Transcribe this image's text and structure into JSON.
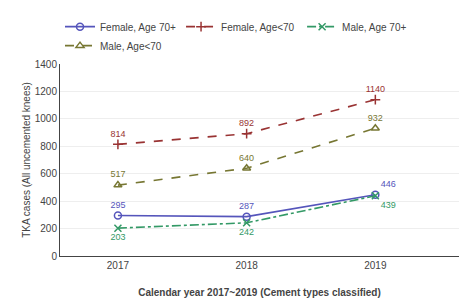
{
  "chart_data": {
    "type": "line",
    "x": [
      2017,
      2018,
      2019
    ],
    "series": [
      {
        "name": "Female, Age 70+",
        "color": "#5555bb",
        "values": [
          295,
          287,
          446
        ],
        "marker": "circle-open",
        "line_style": "solid"
      },
      {
        "name": "Female, Age<70",
        "color": "#993333",
        "values": [
          814,
          892,
          1140
        ],
        "marker": "cross",
        "line_style": "dash"
      },
      {
        "name": "Male, Age 70+",
        "color": "#339966",
        "values": [
          203,
          242,
          439
        ],
        "marker": "x",
        "line_style": "dashdot"
      },
      {
        "name": "Male, Age<70",
        "color": "#777733",
        "values": [
          517,
          640,
          932
        ],
        "marker": "triangle-up-open",
        "line_style": "dash"
      }
    ],
    "xlabel": "Calendar year 2017~2019 (Cement types classified)",
    "ylabel": "TKA cases (All uncemented knees)",
    "xlim": [
      2016.55,
      2019.65
    ],
    "xticks": [
      2017,
      2018,
      2019
    ],
    "ylim": [
      0,
      1400
    ],
    "yticks": [
      0,
      200,
      400,
      600,
      800,
      1000,
      1200,
      1400
    ],
    "grid": "y",
    "legend": "top",
    "data_labels": true
  }
}
